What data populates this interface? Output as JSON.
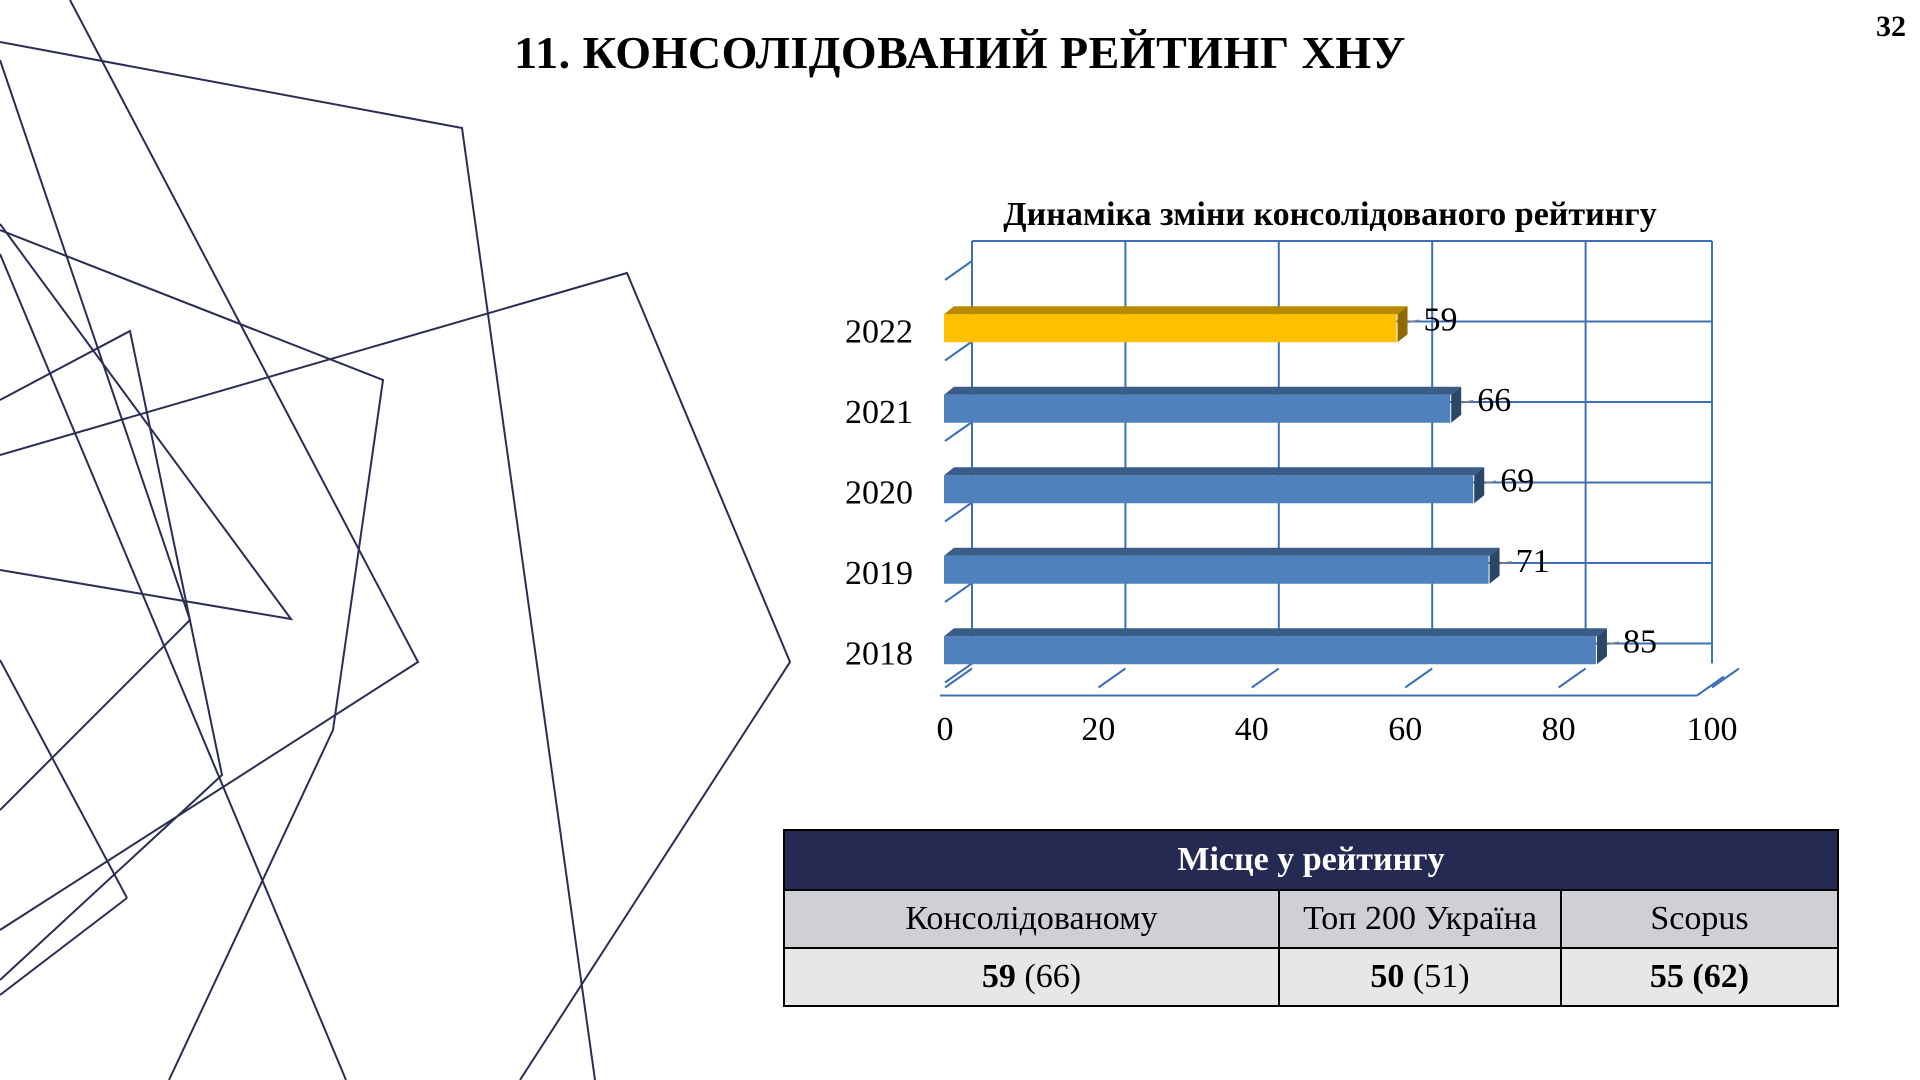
{
  "slide": {
    "title": "11. КОНСОЛІДОВАНИЙ РЕЙТИНГ ХНУ",
    "page_number": "32"
  },
  "chart_data": {
    "type": "bar",
    "orientation": "horizontal",
    "title": "Динаміка зміни консолідованого рейтингу",
    "categories": [
      "2018",
      "2019",
      "2020",
      "2021",
      "2022"
    ],
    "values": [
      85,
      71,
      69,
      66,
      59
    ],
    "data_labels": [
      "85",
      "71",
      "69",
      "66",
      "59"
    ],
    "bar_colors": [
      "#4f81bd",
      "#4f81bd",
      "#4f81bd",
      "#4f81bd",
      "#ffc000"
    ],
    "xlim": [
      0,
      100
    ],
    "x_ticks": [
      "0",
      "20",
      "40",
      "60",
      "80",
      "100"
    ],
    "grid": true,
    "style": "3d-clustered-bar"
  },
  "table": {
    "header": "Місце у рейтингу",
    "columns": [
      "Консолідованому",
      "Топ 200 Україна",
      "Scopus"
    ],
    "cells": [
      {
        "main": "59",
        "extra": "(66)",
        "extra_bold": false
      },
      {
        "main": "50",
        "extra": "(51)",
        "extra_bold": false
      },
      {
        "main": "55",
        "extra": "(62)",
        "extra_bold": true
      }
    ]
  },
  "colors": {
    "line_decor": "#2a2d55",
    "table_header_bg": "#252a52",
    "table_subheader_bg": "#cfd0d5",
    "table_value_bg": "#e7e7e8",
    "grid": "#3c6fb7"
  }
}
